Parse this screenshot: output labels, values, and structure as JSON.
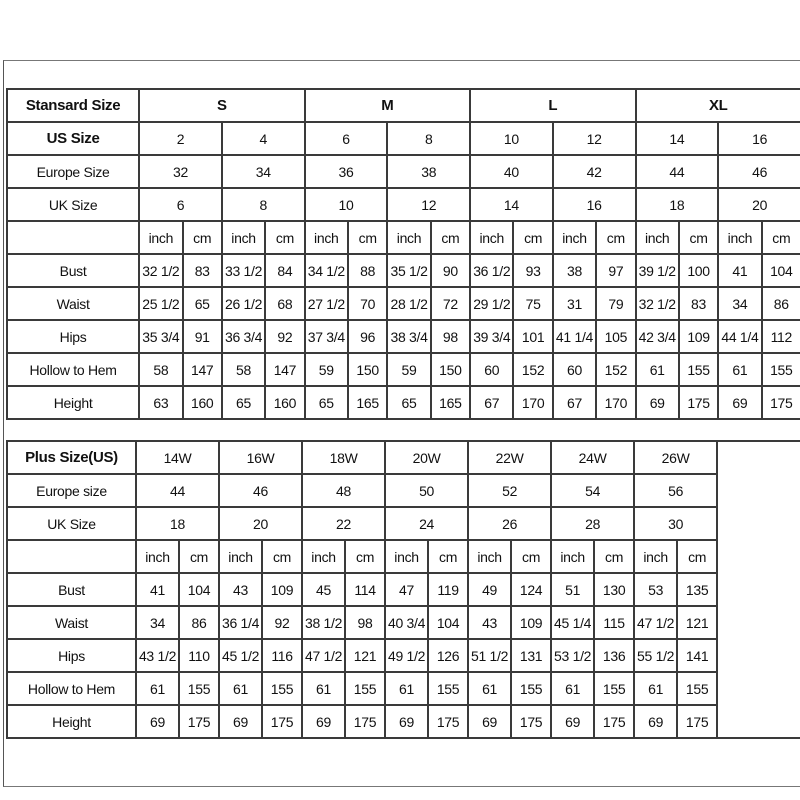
{
  "standard": {
    "header_label": "Stansard Size",
    "groups": [
      "S",
      "M",
      "L",
      "XL"
    ],
    "rows": [
      {
        "label": "US Size",
        "bold": true,
        "values": [
          "2",
          "4",
          "6",
          "8",
          "10",
          "12",
          "14",
          "16"
        ]
      },
      {
        "label": "Europe Size",
        "values": [
          "32",
          "34",
          "36",
          "38",
          "40",
          "42",
          "44",
          "46"
        ]
      },
      {
        "label": "UK Size",
        "values": [
          "6",
          "8",
          "10",
          "12",
          "14",
          "16",
          "18",
          "20"
        ]
      }
    ],
    "units": [
      "inch",
      "cm"
    ],
    "measurements": [
      {
        "label": "Bust",
        "values": [
          "32 1/2",
          "83",
          "33 1/2",
          "84",
          "34 1/2",
          "88",
          "35 1/2",
          "90",
          "36 1/2",
          "93",
          "38",
          "97",
          "39 1/2",
          "100",
          "41",
          "104"
        ]
      },
      {
        "label": "Waist",
        "values": [
          "25 1/2",
          "65",
          "26 1/2",
          "68",
          "27 1/2",
          "70",
          "28 1/2",
          "72",
          "29 1/2",
          "75",
          "31",
          "79",
          "32 1/2",
          "83",
          "34",
          "86"
        ]
      },
      {
        "label": "Hips",
        "values": [
          "35 3/4",
          "91",
          "36 3/4",
          "92",
          "37 3/4",
          "96",
          "38 3/4",
          "98",
          "39 3/4",
          "101",
          "41 1/4",
          "105",
          "42 3/4",
          "109",
          "44 1/4",
          "112"
        ]
      },
      {
        "label": "Hollow to Hem",
        "values": [
          "58",
          "147",
          "58",
          "147",
          "59",
          "150",
          "59",
          "150",
          "60",
          "152",
          "60",
          "152",
          "61",
          "155",
          "61",
          "155"
        ]
      },
      {
        "label": "Height",
        "values": [
          "63",
          "160",
          "65",
          "160",
          "65",
          "165",
          "65",
          "165",
          "67",
          "170",
          "67",
          "170",
          "69",
          "175",
          "69",
          "175"
        ]
      }
    ]
  },
  "plus": {
    "header_label": "Plus Size(US)",
    "sizes": [
      "14W",
      "16W",
      "18W",
      "20W",
      "22W",
      "24W",
      "26W"
    ],
    "rows": [
      {
        "label": "Europe size",
        "values": [
          "44",
          "46",
          "48",
          "50",
          "52",
          "54",
          "56"
        ]
      },
      {
        "label": "UK Size",
        "values": [
          "18",
          "20",
          "22",
          "24",
          "26",
          "28",
          "30"
        ]
      }
    ],
    "units": [
      "inch",
      "cm"
    ],
    "measurements": [
      {
        "label": "Bust",
        "values": [
          "41",
          "104",
          "43",
          "109",
          "45",
          "114",
          "47",
          "119",
          "49",
          "124",
          "51",
          "130",
          "53",
          "135"
        ]
      },
      {
        "label": "Waist",
        "values": [
          "34",
          "86",
          "36 1/4",
          "92",
          "38 1/2",
          "98",
          "40 3/4",
          "104",
          "43",
          "109",
          "45 1/4",
          "115",
          "47 1/2",
          "121"
        ]
      },
      {
        "label": "Hips",
        "values": [
          "43 1/2",
          "110",
          "45 1/2",
          "116",
          "47 1/2",
          "121",
          "49 1/2",
          "126",
          "51 1/2",
          "131",
          "53 1/2",
          "136",
          "55 1/2",
          "141"
        ]
      },
      {
        "label": "Hollow to Hem",
        "values": [
          "61",
          "155",
          "61",
          "155",
          "61",
          "155",
          "61",
          "155",
          "61",
          "155",
          "61",
          "155",
          "61",
          "155"
        ]
      },
      {
        "label": "Height",
        "values": [
          "69",
          "175",
          "69",
          "175",
          "69",
          "175",
          "69",
          "175",
          "69",
          "175",
          "69",
          "175",
          "69",
          "175"
        ]
      }
    ]
  }
}
